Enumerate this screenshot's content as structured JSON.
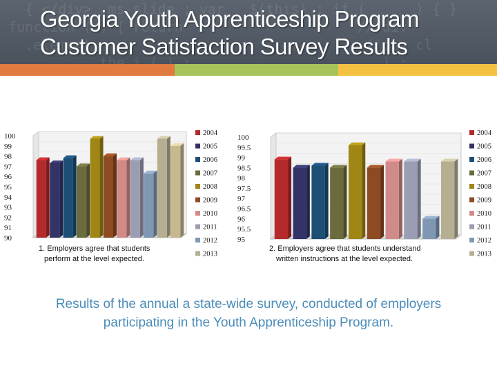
{
  "slide": {
    "title_line1": "Georgia Youth Apprenticeship Program",
    "title_line2": "Customer Satisfaction Survey Results",
    "footer": "Results of the annual a state-wide survey, conducted of employers participating in the Youth Apprenticeship Program.",
    "stripe_colors": [
      "#e07a3e",
      "#a6c45a",
      "#f4c243"
    ]
  },
  "chart_data": [
    {
      "type": "bar",
      "title": "1. Employers agree that students perform at the level expected.",
      "caption_line1": "1.  Employers agree that students",
      "caption_line2": "perform at the level expected.",
      "ylim": [
        90,
        100
      ],
      "yticks": [
        "100",
        "99",
        "98",
        "97",
        "96",
        "95",
        "94",
        "93",
        "92",
        "91",
        "90"
      ],
      "legend_position": "right",
      "series": [
        {
          "name": "2004",
          "value": 97.6,
          "color": "#b4292a"
        },
        {
          "name": "2005",
          "value": 97.3,
          "color": "#333367"
        },
        {
          "name": "2006",
          "value": 97.8,
          "color": "#1d4e76"
        },
        {
          "name": "2007",
          "value": 97.0,
          "color": "#6b6b3e"
        },
        {
          "name": "2008",
          "value": 99.7,
          "color": "#a08614"
        },
        {
          "name": "2009",
          "value": 98.0,
          "color": "#8e4b22"
        },
        {
          "name": "2010",
          "value": 97.6,
          "color": "#d08b89"
        },
        {
          "name": "2011",
          "value": 97.6,
          "color": "#9b9db2"
        },
        {
          "name": "2012",
          "value": 96.3,
          "color": "#7f97b2"
        },
        {
          "name": "2013",
          "value": 99.7,
          "color": "#b5ae91"
        },
        {
          "name": "",
          "value": 99.0,
          "color": "#c8b88f"
        }
      ]
    },
    {
      "type": "bar",
      "title": "2. Employers agree that students understand written instructions at the level expected.",
      "caption_line1": "2. Employers agree that students understand",
      "caption_line2": "written instructions at the level expected.",
      "ylim": [
        95,
        100
      ],
      "yticks": [
        "100",
        "99.5",
        "99",
        "98.5",
        "98",
        "97.5",
        "97",
        "96.5",
        "96",
        "95.5",
        "95"
      ],
      "legend_position": "right",
      "series": [
        {
          "name": "2004",
          "value": 98.9,
          "color": "#b4292a"
        },
        {
          "name": "2005",
          "value": 98.5,
          "color": "#333367"
        },
        {
          "name": "2006",
          "value": 98.6,
          "color": "#1d4e76"
        },
        {
          "name": "2007",
          "value": 98.5,
          "color": "#6b6b3e"
        },
        {
          "name": "2008",
          "value": 99.6,
          "color": "#a08614"
        },
        {
          "name": "2009",
          "value": 98.5,
          "color": "#8e4b22"
        },
        {
          "name": "2010",
          "value": 98.8,
          "color": "#d08b89"
        },
        {
          "name": "2011",
          "value": 98.8,
          "color": "#9b9db2"
        },
        {
          "name": "2012",
          "value": 96.0,
          "color": "#7f97b2"
        },
        {
          "name": "2013",
          "value": 98.8,
          "color": "#b5ae91"
        }
      ]
    }
  ]
}
